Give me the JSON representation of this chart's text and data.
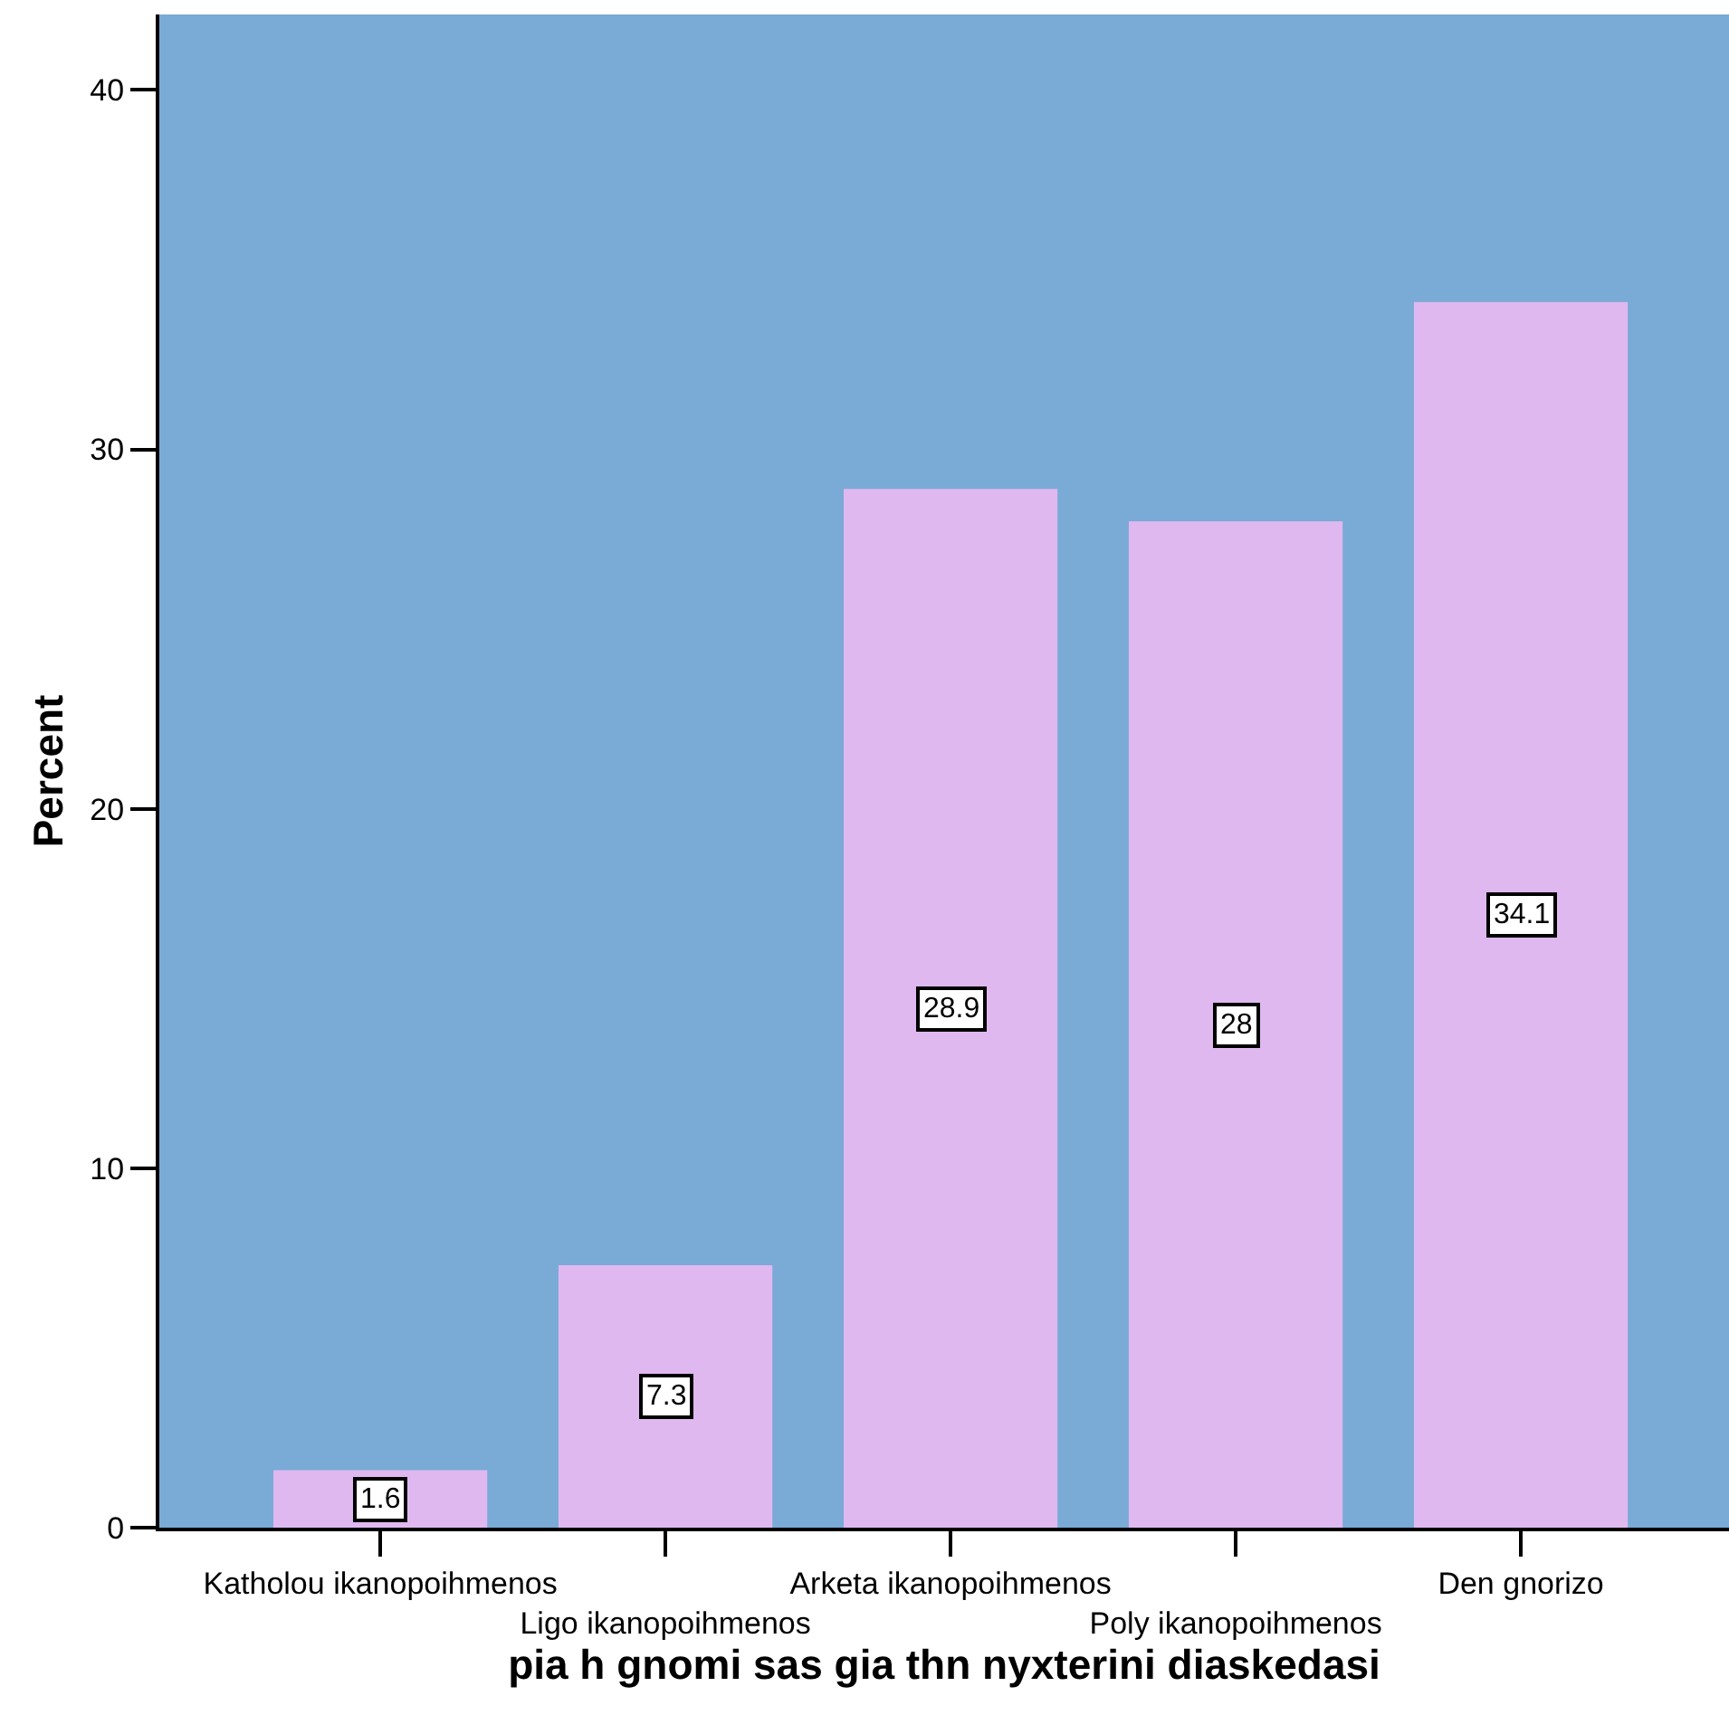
{
  "chart_data": {
    "type": "bar",
    "xlabel": "pia h gnomi sas gia thn nyxterini diaskedasi",
    "ylabel": "Percent",
    "categories": [
      "Katholou ikanopoihmenos",
      "Ligo ikanopoihmenos",
      "Arketa ikanopoihmenos",
      "Poly ikanopoihmenos",
      "Den gnorizo"
    ],
    "values": [
      1.6,
      7.3,
      28.9,
      28,
      34.1
    ],
    "color": "#dfb8f0",
    "data_labels": true,
    "ylim": [
      0,
      42.1
    ],
    "yticks": [
      0,
      10,
      20,
      30,
      40
    ],
    "grid": false,
    "legend": false
  }
}
